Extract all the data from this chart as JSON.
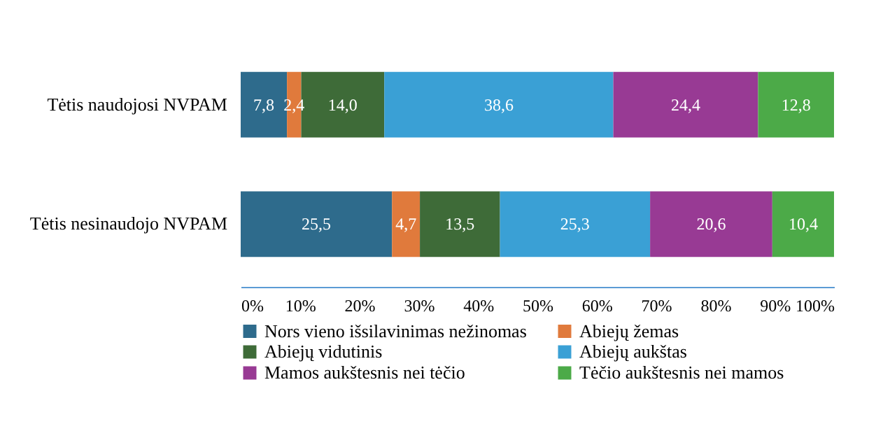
{
  "chart_data": {
    "type": "bar",
    "orientation": "horizontal",
    "stacked": true,
    "categories": [
      "Tėtis naudojosi NVPAM",
      "Tėtis nesinaudojo NVPAM"
    ],
    "series": [
      {
        "name": "Nors vieno išsilavinimas nežinomas",
        "color": "#2e6b8c",
        "values": [
          7.8,
          25.5
        ],
        "value_labels": [
          "7,8",
          "25,5"
        ]
      },
      {
        "name": "Abiejų žemas",
        "color": "#e07a3c",
        "values": [
          2.4,
          4.7
        ],
        "value_labels": [
          "2,4",
          "4,7"
        ]
      },
      {
        "name": "Abiejų vidutinis",
        "color": "#3e6b38",
        "values": [
          14.0,
          13.5
        ],
        "value_labels": [
          "14,0",
          "13,5"
        ]
      },
      {
        "name": "Abiejų aukštas",
        "color": "#3aa0d5",
        "values": [
          38.6,
          25.3
        ],
        "value_labels": [
          "38,6",
          "25,3"
        ]
      },
      {
        "name": "Mamos aukštesnis nei tėčio",
        "color": "#983a94",
        "values": [
          24.4,
          20.6
        ],
        "value_labels": [
          "24,4",
          "20,6"
        ]
      },
      {
        "name": "Tėčio aukštesnis nei mamos",
        "color": "#4caa48",
        "values": [
          12.8,
          10.4
        ],
        "value_labels": [
          "12,8",
          "10,4"
        ]
      }
    ],
    "xlim": [
      0,
      100
    ],
    "xticks": [
      {
        "value": 0,
        "label": "0%"
      },
      {
        "value": 10,
        "label": "10%"
      },
      {
        "value": 20,
        "label": "20%"
      },
      {
        "value": 30,
        "label": "30%"
      },
      {
        "value": 40,
        "label": "40%"
      },
      {
        "value": 50,
        "label": "50%"
      },
      {
        "value": 60,
        "label": "60%"
      },
      {
        "value": 70,
        "label": "70%"
      },
      {
        "value": 80,
        "label": "80%"
      },
      {
        "value": 90,
        "label": "90%"
      },
      {
        "value": 100,
        "label": "100%"
      }
    ],
    "grid": false,
    "legend": "bottom"
  }
}
